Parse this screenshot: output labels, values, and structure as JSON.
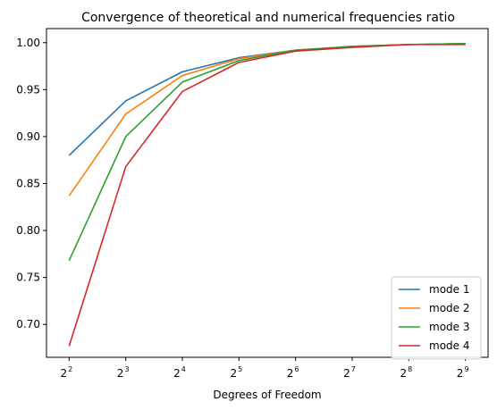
{
  "chart_data": {
    "type": "line",
    "title": "Convergence of theoretical and numerical frequencies ratio",
    "xlabel": "Degrees of Freedom",
    "ylabel": "",
    "x_scale": "log2",
    "x": [
      2,
      3,
      4,
      5,
      6,
      7,
      8,
      9
    ],
    "x_tick_labels": [
      {
        "base": "2",
        "exp": "2"
      },
      {
        "base": "2",
        "exp": "3"
      },
      {
        "base": "2",
        "exp": "4"
      },
      {
        "base": "2",
        "exp": "5"
      },
      {
        "base": "2",
        "exp": "6"
      },
      {
        "base": "2",
        "exp": "7"
      },
      {
        "base": "2",
        "exp": "8"
      },
      {
        "base": "2",
        "exp": "9"
      }
    ],
    "xlim": [
      1.6,
      9.4
    ],
    "ylim": [
      0.665,
      1.015
    ],
    "y_ticks": [
      "0.70",
      "0.75",
      "0.80",
      "0.85",
      "0.90",
      "0.95",
      "1.00"
    ],
    "grid": false,
    "legend_position": "lower right",
    "series": [
      {
        "name": "mode 1",
        "color": "#1f77b4",
        "values": [
          0.88,
          0.938,
          0.969,
          0.984,
          0.992,
          0.996,
          0.998,
          0.999
        ]
      },
      {
        "name": "mode 2",
        "color": "#ff7f0e",
        "values": [
          0.837,
          0.924,
          0.965,
          0.983,
          0.992,
          0.996,
          0.998,
          0.999
        ]
      },
      {
        "name": "mode 3",
        "color": "#2ca02c",
        "values": [
          0.768,
          0.9,
          0.958,
          0.981,
          0.992,
          0.996,
          0.998,
          0.999
        ]
      },
      {
        "name": "mode 4",
        "color": "#d62728",
        "values": [
          0.677,
          0.868,
          0.948,
          0.979,
          0.991,
          0.995,
          0.998,
          0.998
        ]
      }
    ]
  }
}
